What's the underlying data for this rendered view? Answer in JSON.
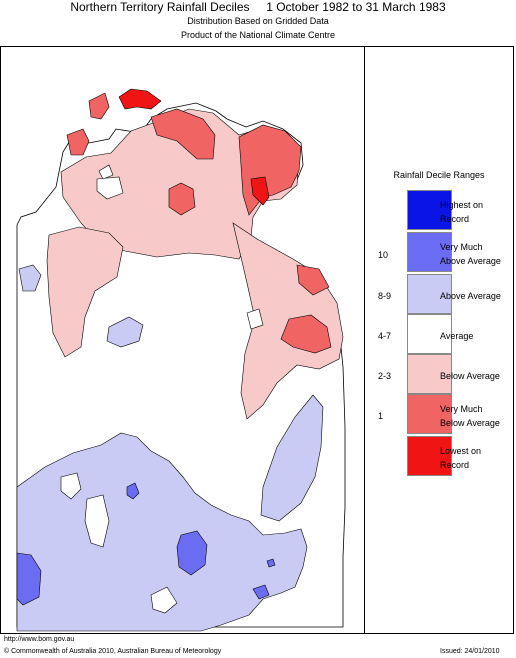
{
  "header": {
    "title": "Northern Territory Rainfall Deciles     1 October 1982 to 31 March 1983",
    "subtitle_1": "Distribution Based on Gridded Data",
    "subtitle_2": "Product of the National Climate Centre"
  },
  "legend": {
    "title": "Rainfall Decile Ranges",
    "items": [
      {
        "label": "Highest on Record",
        "range": "",
        "color": "#0a14e6"
      },
      {
        "label": "Very Much Above Average",
        "range": "10",
        "color": "#6a6cf2"
      },
      {
        "label": "Above Average",
        "range": "8-9",
        "color": "#c9cbf5"
      },
      {
        "label": "Average",
        "range": "4-7",
        "color": "#ffffff"
      },
      {
        "label": "Below Average",
        "range": "2-3",
        "color": "#f7c9c9"
      },
      {
        "label": "Very Much Below Average",
        "range": "1",
        "color": "#f06464"
      },
      {
        "label": "Lowest on Record",
        "range": "",
        "color": "#f01414"
      }
    ]
  },
  "footer": {
    "url": "http://www.bom.gov.au",
    "copyright": "© Commonwealth of Australia 2010, Australian Bureau of Meteorology",
    "issued": "Issued: 24/01/2010"
  }
}
